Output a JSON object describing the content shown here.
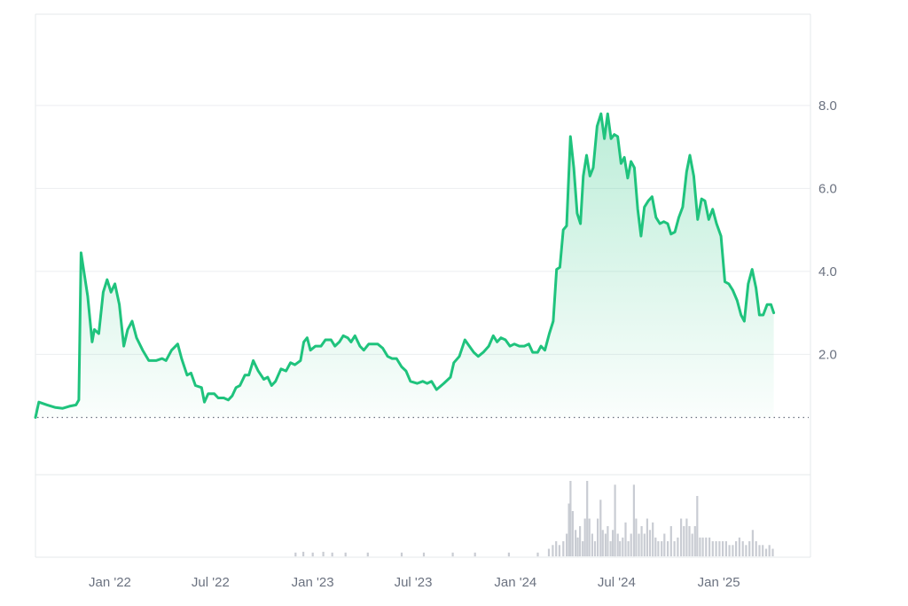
{
  "chart_data": {
    "type": "area",
    "line_color": "#1fc37d",
    "fill_color": "#1fc37d",
    "grid": true,
    "y_axis": {
      "position": "right",
      "ticks": [
        "2.0",
        "4.0",
        "6.0",
        "8.0"
      ],
      "tick_values": [
        2.0,
        4.0,
        6.0,
        8.0
      ],
      "ylim": [
        -0.9,
        10.2
      ]
    },
    "x_axis": {
      "ticks": [
        "Jan '22",
        "Jul '22",
        "Jan '23",
        "Jul '23",
        "Jan '24",
        "Jul '24",
        "Jan '25"
      ],
      "tick_dates": [
        "2022-01-01",
        "2022-07-01",
        "2023-01-01",
        "2023-07-01",
        "2024-01-01",
        "2024-07-01",
        "2025-01-01"
      ],
      "range": [
        "2021-08-20",
        "2025-06-15"
      ]
    },
    "baseline_value": 0.48,
    "series": [
      {
        "points": [
          [
            "2021-08-20",
            0.48
          ],
          [
            "2021-08-26",
            0.85
          ],
          [
            "2021-09-10",
            0.78
          ],
          [
            "2021-09-25",
            0.72
          ],
          [
            "2021-10-08",
            0.7
          ],
          [
            "2021-10-20",
            0.75
          ],
          [
            "2021-11-01",
            0.78
          ],
          [
            "2021-11-06",
            0.9
          ],
          [
            "2021-11-10",
            4.45
          ],
          [
            "2021-11-14",
            4.1
          ],
          [
            "2021-11-22",
            3.4
          ],
          [
            "2021-11-30",
            2.3
          ],
          [
            "2021-12-04",
            2.6
          ],
          [
            "2021-12-12",
            2.5
          ],
          [
            "2021-12-20",
            3.5
          ],
          [
            "2021-12-27",
            3.8
          ],
          [
            "2022-01-03",
            3.5
          ],
          [
            "2022-01-10",
            3.7
          ],
          [
            "2022-01-18",
            3.2
          ],
          [
            "2022-01-26",
            2.2
          ],
          [
            "2022-02-02",
            2.6
          ],
          [
            "2022-02-10",
            2.8
          ],
          [
            "2022-02-18",
            2.4
          ],
          [
            "2022-03-01",
            2.1
          ],
          [
            "2022-03-12",
            1.85
          ],
          [
            "2022-03-25",
            1.85
          ],
          [
            "2022-04-05",
            1.9
          ],
          [
            "2022-04-12",
            1.85
          ],
          [
            "2022-04-22",
            2.1
          ],
          [
            "2022-05-03",
            2.25
          ],
          [
            "2022-05-10",
            1.9
          ],
          [
            "2022-05-20",
            1.5
          ],
          [
            "2022-05-27",
            1.55
          ],
          [
            "2022-06-04",
            1.25
          ],
          [
            "2022-06-15",
            1.2
          ],
          [
            "2022-06-20",
            0.85
          ],
          [
            "2022-06-27",
            1.05
          ],
          [
            "2022-07-08",
            1.05
          ],
          [
            "2022-07-15",
            0.95
          ],
          [
            "2022-07-25",
            0.95
          ],
          [
            "2022-08-02",
            0.9
          ],
          [
            "2022-08-09",
            1.0
          ],
          [
            "2022-08-16",
            1.2
          ],
          [
            "2022-08-23",
            1.25
          ],
          [
            "2022-09-01",
            1.5
          ],
          [
            "2022-09-08",
            1.5
          ],
          [
            "2022-09-16",
            1.85
          ],
          [
            "2022-09-25",
            1.6
          ],
          [
            "2022-10-05",
            1.4
          ],
          [
            "2022-10-12",
            1.45
          ],
          [
            "2022-10-19",
            1.25
          ],
          [
            "2022-10-26",
            1.35
          ],
          [
            "2022-11-05",
            1.65
          ],
          [
            "2022-11-14",
            1.6
          ],
          [
            "2022-11-22",
            1.8
          ],
          [
            "2022-11-30",
            1.75
          ],
          [
            "2022-12-10",
            1.85
          ],
          [
            "2022-12-16",
            2.3
          ],
          [
            "2022-12-22",
            2.4
          ],
          [
            "2022-12-28",
            2.1
          ],
          [
            "2023-01-06",
            2.2
          ],
          [
            "2023-01-16",
            2.2
          ],
          [
            "2023-01-24",
            2.35
          ],
          [
            "2023-02-03",
            2.35
          ],
          [
            "2023-02-10",
            2.2
          ],
          [
            "2023-02-18",
            2.3
          ],
          [
            "2023-02-25",
            2.45
          ],
          [
            "2023-03-05",
            2.4
          ],
          [
            "2023-03-11",
            2.3
          ],
          [
            "2023-03-18",
            2.45
          ],
          [
            "2023-03-27",
            2.2
          ],
          [
            "2023-04-03",
            2.1
          ],
          [
            "2023-04-12",
            2.25
          ],
          [
            "2023-04-20",
            2.25
          ],
          [
            "2023-04-28",
            2.25
          ],
          [
            "2023-05-07",
            2.15
          ],
          [
            "2023-05-16",
            1.95
          ],
          [
            "2023-05-24",
            1.9
          ],
          [
            "2023-06-01",
            1.9
          ],
          [
            "2023-06-10",
            1.7
          ],
          [
            "2023-06-18",
            1.6
          ],
          [
            "2023-06-26",
            1.35
          ],
          [
            "2023-07-08",
            1.3
          ],
          [
            "2023-07-18",
            1.35
          ],
          [
            "2023-07-26",
            1.3
          ],
          [
            "2023-08-03",
            1.35
          ],
          [
            "2023-08-12",
            1.15
          ],
          [
            "2023-08-25",
            1.3
          ],
          [
            "2023-09-06",
            1.45
          ],
          [
            "2023-09-12",
            1.8
          ],
          [
            "2023-09-22",
            1.95
          ],
          [
            "2023-10-02",
            2.35
          ],
          [
            "2023-10-10",
            2.2
          ],
          [
            "2023-10-18",
            2.05
          ],
          [
            "2023-10-26",
            1.95
          ],
          [
            "2023-11-04",
            2.05
          ],
          [
            "2023-11-14",
            2.2
          ],
          [
            "2023-11-22",
            2.45
          ],
          [
            "2023-11-29",
            2.3
          ],
          [
            "2023-12-06",
            2.4
          ],
          [
            "2023-12-14",
            2.35
          ],
          [
            "2023-12-22",
            2.2
          ],
          [
            "2023-12-30",
            2.25
          ],
          [
            "2024-01-08",
            2.2
          ],
          [
            "2024-01-17",
            2.2
          ],
          [
            "2024-01-25",
            2.25
          ],
          [
            "2024-02-01",
            2.05
          ],
          [
            "2024-02-10",
            2.05
          ],
          [
            "2024-02-16",
            2.2
          ],
          [
            "2024-02-23",
            2.1
          ],
          [
            "2024-03-02",
            2.5
          ],
          [
            "2024-03-09",
            2.8
          ],
          [
            "2024-03-15",
            4.05
          ],
          [
            "2024-03-21",
            4.1
          ],
          [
            "2024-03-27",
            5.0
          ],
          [
            "2024-04-02",
            5.1
          ],
          [
            "2024-04-09",
            7.25
          ],
          [
            "2024-04-15",
            6.5
          ],
          [
            "2024-04-21",
            5.4
          ],
          [
            "2024-04-27",
            5.15
          ],
          [
            "2024-05-02",
            6.3
          ],
          [
            "2024-05-08",
            6.8
          ],
          [
            "2024-05-14",
            6.3
          ],
          [
            "2024-05-20",
            6.5
          ],
          [
            "2024-05-27",
            7.5
          ],
          [
            "2024-06-03",
            7.8
          ],
          [
            "2024-06-09",
            7.2
          ],
          [
            "2024-06-15",
            7.8
          ],
          [
            "2024-06-21",
            7.2
          ],
          [
            "2024-06-27",
            7.3
          ],
          [
            "2024-07-03",
            7.25
          ],
          [
            "2024-07-09",
            6.6
          ],
          [
            "2024-07-15",
            6.75
          ],
          [
            "2024-07-21",
            6.25
          ],
          [
            "2024-07-27",
            6.65
          ],
          [
            "2024-08-02",
            6.5
          ],
          [
            "2024-08-08",
            5.5
          ],
          [
            "2024-08-14",
            4.85
          ],
          [
            "2024-08-20",
            5.55
          ],
          [
            "2024-08-27",
            5.7
          ],
          [
            "2024-09-03",
            5.8
          ],
          [
            "2024-09-10",
            5.3
          ],
          [
            "2024-09-17",
            5.15
          ],
          [
            "2024-09-24",
            5.2
          ],
          [
            "2024-10-01",
            5.15
          ],
          [
            "2024-10-07",
            4.9
          ],
          [
            "2024-10-14",
            4.95
          ],
          [
            "2024-10-21",
            5.3
          ],
          [
            "2024-10-28",
            5.55
          ],
          [
            "2024-11-04",
            6.4
          ],
          [
            "2024-11-10",
            6.8
          ],
          [
            "2024-11-17",
            6.3
          ],
          [
            "2024-11-24",
            5.25
          ],
          [
            "2024-12-01",
            5.75
          ],
          [
            "2024-12-07",
            5.7
          ],
          [
            "2024-12-14",
            5.25
          ],
          [
            "2024-12-21",
            5.5
          ],
          [
            "2024-12-28",
            5.15
          ],
          [
            "2025-01-05",
            4.85
          ],
          [
            "2025-01-12",
            3.75
          ],
          [
            "2025-01-19",
            3.7
          ],
          [
            "2025-01-26",
            3.55
          ],
          [
            "2025-02-03",
            3.3
          ],
          [
            "2025-02-10",
            2.95
          ],
          [
            "2025-02-16",
            2.8
          ],
          [
            "2025-02-23",
            3.7
          ],
          [
            "2025-03-02",
            4.05
          ],
          [
            "2025-03-09",
            3.6
          ],
          [
            "2025-03-15",
            2.95
          ],
          [
            "2025-03-22",
            2.95
          ],
          [
            "2025-03-29",
            3.2
          ],
          [
            "2025-04-05",
            3.2
          ],
          [
            "2025-04-10",
            3.0
          ]
        ]
      }
    ],
    "volume": {
      "color": "#c9ccd3",
      "points": [
        [
          "2022-12-01",
          0.5
        ],
        [
          "2022-12-15",
          0.6
        ],
        [
          "2023-01-01",
          0.5
        ],
        [
          "2023-01-20",
          0.6
        ],
        [
          "2023-02-05",
          0.5
        ],
        [
          "2023-03-01",
          0.5
        ],
        [
          "2023-04-10",
          0.5
        ],
        [
          "2023-06-10",
          0.5
        ],
        [
          "2023-07-20",
          0.5
        ],
        [
          "2023-09-10",
          0.5
        ],
        [
          "2023-10-20",
          0.5
        ],
        [
          "2023-12-20",
          0.5
        ],
        [
          "2024-02-10",
          0.5
        ],
        [
          "2024-03-01",
          1.0
        ],
        [
          "2024-03-08",
          1.5
        ],
        [
          "2024-03-14",
          2.0
        ],
        [
          "2024-03-20",
          1.5
        ],
        [
          "2024-03-27",
          2.0
        ],
        [
          "2024-04-02",
          3.0
        ],
        [
          "2024-04-06",
          7.0
        ],
        [
          "2024-04-09",
          10.0
        ],
        [
          "2024-04-13",
          6.0
        ],
        [
          "2024-04-18",
          3.5
        ],
        [
          "2024-04-22",
          2.5
        ],
        [
          "2024-04-26",
          4.0
        ],
        [
          "2024-05-01",
          2.0
        ],
        [
          "2024-05-05",
          5.0
        ],
        [
          "2024-05-09",
          10.0
        ],
        [
          "2024-05-13",
          5.0
        ],
        [
          "2024-05-18",
          3.0
        ],
        [
          "2024-05-23",
          2.0
        ],
        [
          "2024-05-28",
          5.0
        ],
        [
          "2024-06-02",
          7.5
        ],
        [
          "2024-06-06",
          3.5
        ],
        [
          "2024-06-11",
          3.0
        ],
        [
          "2024-06-15",
          4.0
        ],
        [
          "2024-06-20",
          2.0
        ],
        [
          "2024-06-24",
          3.5
        ],
        [
          "2024-06-28",
          9.5
        ],
        [
          "2024-07-03",
          3.0
        ],
        [
          "2024-07-07",
          2.0
        ],
        [
          "2024-07-12",
          2.5
        ],
        [
          "2024-07-17",
          4.5
        ],
        [
          "2024-07-22",
          2.0
        ],
        [
          "2024-07-27",
          3.0
        ],
        [
          "2024-08-01",
          9.5
        ],
        [
          "2024-08-05",
          5.0
        ],
        [
          "2024-08-10",
          3.0
        ],
        [
          "2024-08-15",
          4.0
        ],
        [
          "2024-08-20",
          3.0
        ],
        [
          "2024-08-25",
          5.0
        ],
        [
          "2024-08-30",
          3.5
        ],
        [
          "2024-09-04",
          4.5
        ],
        [
          "2024-09-09",
          2.5
        ],
        [
          "2024-09-14",
          2.0
        ],
        [
          "2024-09-20",
          2.0
        ],
        [
          "2024-09-25",
          3.0
        ],
        [
          "2024-10-01",
          2.0
        ],
        [
          "2024-10-07",
          4.0
        ],
        [
          "2024-10-13",
          2.0
        ],
        [
          "2024-10-19",
          2.5
        ],
        [
          "2024-10-25",
          5.0
        ],
        [
          "2024-10-30",
          4.0
        ],
        [
          "2024-11-04",
          5.0
        ],
        [
          "2024-11-09",
          4.0
        ],
        [
          "2024-11-14",
          3.0
        ],
        [
          "2024-11-19",
          4.0
        ],
        [
          "2024-11-23",
          8.0
        ],
        [
          "2024-11-28",
          2.5
        ],
        [
          "2024-12-03",
          2.5
        ],
        [
          "2024-12-09",
          2.5
        ],
        [
          "2024-12-15",
          2.5
        ],
        [
          "2024-12-21",
          2.0
        ],
        [
          "2024-12-27",
          2.0
        ],
        [
          "2025-01-02",
          2.0
        ],
        [
          "2025-01-08",
          2.0
        ],
        [
          "2025-01-14",
          2.0
        ],
        [
          "2025-01-20",
          1.5
        ],
        [
          "2025-01-26",
          1.5
        ],
        [
          "2025-02-01",
          2.0
        ],
        [
          "2025-02-07",
          2.5
        ],
        [
          "2025-02-13",
          2.0
        ],
        [
          "2025-02-19",
          1.5
        ],
        [
          "2025-02-25",
          2.0
        ],
        [
          "2025-03-03",
          3.5
        ],
        [
          "2025-03-09",
          2.0
        ],
        [
          "2025-03-15",
          1.5
        ],
        [
          "2025-03-21",
          1.5
        ],
        [
          "2025-03-27",
          1.0
        ],
        [
          "2025-04-02",
          1.5
        ],
        [
          "2025-04-08",
          1.0
        ]
      ]
    }
  }
}
